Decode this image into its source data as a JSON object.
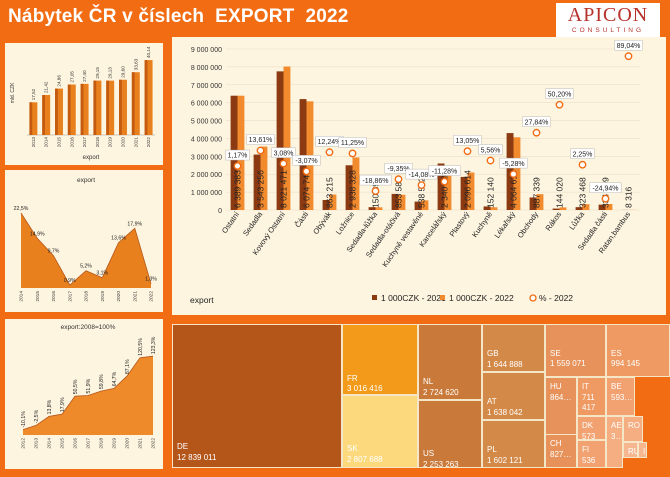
{
  "header": {
    "title": "Nábytek ČR v číslech  EXPORT  2022",
    "logo_big": "APICON",
    "logo_small": "CONSULTING"
  },
  "colors": {
    "background": "#F26C14",
    "panel": "#FEF5E0",
    "series_2021": "#8B3A12",
    "series_2022": "#F28A2E",
    "pct_marker": "#F26C14"
  },
  "chart_data": [
    {
      "id": "export-total",
      "type": "bar",
      "ylabel": "mld. CZK",
      "xlabel": "export",
      "categories": [
        "2013",
        "2014",
        "2015",
        "2016",
        "2017",
        "2018",
        "2019",
        "2020",
        "2021",
        "2022"
      ],
      "values": [
        17.52,
        21.42,
        24.86,
        27.05,
        27.4,
        29.15,
        29.13,
        29.6,
        33.63,
        40.14
      ],
      "labels": [
        "17,52",
        "21,42",
        "24,86",
        "27,05",
        "27,40",
        "29,15",
        "29,13",
        "29,60",
        "33,63",
        "40,14"
      ]
    },
    {
      "id": "export-growth",
      "type": "area",
      "title": "export",
      "categories": [
        "2014",
        "2015",
        "2016",
        "2017",
        "2018",
        "2019",
        "2020",
        "2021",
        "2022"
      ],
      "values": [
        22.5,
        14.9,
        9.7,
        0.9,
        5.2,
        3.1,
        13.6,
        17.9,
        1.3
      ],
      "labels": [
        "22,5%",
        "14,9%",
        "9,7%",
        "0,9%",
        "5,2%",
        "3,1%",
        "13,6%",
        "17,9%",
        "1,3%"
      ]
    },
    {
      "id": "export-index",
      "type": "area",
      "title": "export:2008=100%",
      "categories": [
        "2012",
        "2013",
        "2014",
        "2015",
        "2016",
        "2017",
        "2018",
        "2019",
        "2020",
        "2021",
        "2022"
      ],
      "values": [
        -10.1,
        -2.5,
        13.8,
        17.9,
        50.5,
        51.9,
        59.8,
        64.7,
        87.1,
        120.5,
        123.3
      ],
      "labels": [
        "-10,1%",
        "-2,5%",
        "13,8%",
        "17,9%",
        "50,5%",
        "51,9%",
        "59,8%",
        "64,7%",
        "87,1%",
        "120,5%",
        "123,3%"
      ]
    },
    {
      "id": "export-by-category",
      "type": "bar",
      "xlabel": "export",
      "ylim": [
        0,
        9000000
      ],
      "yticks": [
        "0",
        "1 000 000",
        "2 000 000",
        "3 000 000",
        "4 000 000",
        "5 000 000",
        "6 000 000",
        "7 000 000",
        "8 000 000",
        "9 000 000"
      ],
      "categories": [
        "Ostatní",
        "Sedadla",
        "Kovový Ostatní",
        "Části",
        "Obývák",
        "Ložnice",
        "Sedadla-lůžka",
        "Sedadla-otáčivá",
        "Kuchyně vestavěné",
        "Kancelářský",
        "Plastový",
        "Kuchyně",
        "Lékařský",
        "Obchody",
        "Rákos",
        "Lůžka",
        "Sedadla části",
        "Ratan,bambus"
      ],
      "series": [
        {
          "name": "1 000CZK - 2021",
          "values": [
            6389383,
            3100000,
            7750000,
            6200000,
            560000,
            2500000,
            160000,
            900000,
            470000,
            2600000,
            1850000,
            200000,
            4300000,
            700000,
            80000,
            160000,
            300000,
            5000
          ]
        },
        {
          "name": "1 000CZK - 2022",
          "values": [
            6389383,
            3543256,
            8021471,
            6074746,
            863215,
            2938328,
            150891,
            853587,
            538542,
            2340997,
            2096614,
            152140,
            4064618,
            887339,
            144020,
            323468,
            334309,
            8316
          ]
        },
        {
          "name": "% - 2022",
          "values": [
            1.17,
            13.61,
            3.08,
            -3.07,
            12.24,
            11.25,
            -18.86,
            -9.35,
            -14.08,
            -11.28,
            13.05,
            5.56,
            -5.28,
            27.84,
            50.2,
            2.25,
            -24.94,
            89.04
          ]
        }
      ],
      "value_labels": [
        "6 389 383",
        "3 543 256",
        "8 021 471",
        "6 074 746",
        "863 215",
        "2 938 328",
        "150 891",
        "853 587",
        "538 542",
        "2 340 997",
        "2 096 614",
        "152 140",
        "4 064 618",
        "887 339",
        "144 020",
        "323 468",
        "334 309",
        "8 316"
      ],
      "pct_labels": [
        "1,17%",
        "13,61%",
        "3,08%",
        "-3,07%",
        "12,24%",
        "11,25%",
        "-18,86%",
        "-9,35%",
        "-14,08%",
        "-11,28%",
        "13,05%",
        "5,56%",
        "-5,28%",
        "27,84%",
        "50,20%",
        "2,25%",
        "-24,94%",
        "89,04%"
      ]
    },
    {
      "id": "export-by-country",
      "type": "treemap",
      "items": [
        {
          "code": "DE",
          "value": "12 839 011",
          "color": "#B4561A"
        },
        {
          "code": "FR",
          "value": "3 016 416",
          "color": "#F39A1A"
        },
        {
          "code": "SK",
          "value": "2 807 688",
          "color": "#FDD97E"
        },
        {
          "code": "NL",
          "value": "2 724 620",
          "color": "#C97A3A"
        },
        {
          "code": "US",
          "value": "2 253 263",
          "color": "#C97A3A"
        },
        {
          "code": "GB",
          "value": "1 644 888",
          "color": "#D38948"
        },
        {
          "code": "AT",
          "value": "1 638 042",
          "color": "#D38948"
        },
        {
          "code": "PL",
          "value": "1 602 121",
          "color": "#D38948"
        },
        {
          "code": "SE",
          "value": "1 559 071",
          "color": "#E6925A"
        },
        {
          "code": "ES",
          "value": "994 145",
          "color": "#EE9A62"
        },
        {
          "code": "HU",
          "value": "864…",
          "color": "#E6925A"
        },
        {
          "code": "IT",
          "value": "711 417",
          "color": "#EE9A62"
        },
        {
          "code": "BE",
          "value": "593…",
          "color": "#F2A270"
        },
        {
          "code": "DK",
          "value": "573 8…",
          "color": "#F2A270"
        },
        {
          "code": "CH",
          "value": "827…",
          "color": "#E6925A"
        },
        {
          "code": "FI",
          "value": "536 7…",
          "color": "#F2A270"
        },
        {
          "code": "AE",
          "value": "3…",
          "color": "#F4AE82"
        },
        {
          "code": "RO",
          "value": "",
          "color": "#F4AE82"
        },
        {
          "code": "RU",
          "value": "",
          "color": "#F6B690"
        },
        {
          "code": "IE",
          "value": "",
          "color": "#F6B690"
        }
      ]
    }
  ]
}
